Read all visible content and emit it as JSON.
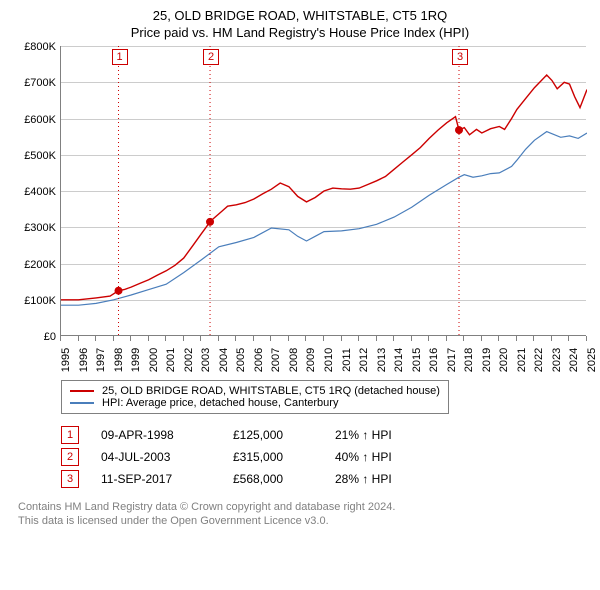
{
  "title_line1": "25, OLD BRIDGE ROAD, WHITSTABLE, CT5 1RQ",
  "title_line2": "Price paid vs. HM Land Registry's House Price Index (HPI)",
  "chart": {
    "x_axis": {
      "start_year": 1995,
      "end_year": 2025,
      "tick_step": 1
    },
    "y_axis": {
      "min": 0,
      "max": 800,
      "tick_step": 100,
      "prefix": "£",
      "suffix": "K"
    },
    "grid_color": "#cccccc",
    "axis_color": "#808080",
    "series": {
      "property": {
        "label": "25, OLD BRIDGE ROAD, WHITSTABLE, CT5 1RQ (detached house)",
        "color": "#cc0000",
        "line_width": 1.4,
        "data": [
          [
            1995.0,
            100
          ],
          [
            1996.0,
            100
          ],
          [
            1997.0,
            105
          ],
          [
            1997.8,
            110
          ],
          [
            1998.28,
            125
          ],
          [
            1998.6,
            128
          ],
          [
            1999.0,
            135
          ],
          [
            1999.5,
            145
          ],
          [
            2000.0,
            155
          ],
          [
            2000.5,
            168
          ],
          [
            2001.0,
            180
          ],
          [
            2001.5,
            195
          ],
          [
            2002.0,
            215
          ],
          [
            2002.5,
            248
          ],
          [
            2003.0,
            282
          ],
          [
            2003.2,
            295
          ],
          [
            2003.5,
            315
          ],
          [
            2003.6,
            320
          ],
          [
            2004.2,
            345
          ],
          [
            2004.5,
            358
          ],
          [
            2005.0,
            362
          ],
          [
            2005.5,
            368
          ],
          [
            2006.0,
            378
          ],
          [
            2006.5,
            392
          ],
          [
            2007.0,
            405
          ],
          [
            2007.5,
            422
          ],
          [
            2008.0,
            412
          ],
          [
            2008.5,
            385
          ],
          [
            2009.0,
            370
          ],
          [
            2009.5,
            382
          ],
          [
            2010.0,
            400
          ],
          [
            2010.5,
            408
          ],
          [
            2011.0,
            406
          ],
          [
            2011.5,
            405
          ],
          [
            2012.0,
            408
          ],
          [
            2012.5,
            418
          ],
          [
            2013.0,
            428
          ],
          [
            2013.5,
            440
          ],
          [
            2014.0,
            460
          ],
          [
            2014.5,
            480
          ],
          [
            2015.0,
            500
          ],
          [
            2015.5,
            520
          ],
          [
            2016.0,
            545
          ],
          [
            2016.5,
            568
          ],
          [
            2017.0,
            588
          ],
          [
            2017.5,
            605
          ],
          [
            2017.7,
            568
          ],
          [
            2018.0,
            575
          ],
          [
            2018.3,
            555
          ],
          [
            2018.7,
            570
          ],
          [
            2019.0,
            560
          ],
          [
            2019.5,
            572
          ],
          [
            2020.0,
            578
          ],
          [
            2020.3,
            570
          ],
          [
            2020.7,
            600
          ],
          [
            2021.0,
            625
          ],
          [
            2021.5,
            655
          ],
          [
            2022.0,
            685
          ],
          [
            2022.3,
            700
          ],
          [
            2022.7,
            720
          ],
          [
            2023.0,
            705
          ],
          [
            2023.3,
            682
          ],
          [
            2023.7,
            700
          ],
          [
            2024.0,
            695
          ],
          [
            2024.3,
            660
          ],
          [
            2024.6,
            630
          ],
          [
            2025.0,
            680
          ]
        ]
      },
      "hpi": {
        "label": "HPI: Average price, detached house, Canterbury",
        "color": "#4a7ebb",
        "line_width": 1.2,
        "data": [
          [
            1995.0,
            85
          ],
          [
            1996.0,
            85
          ],
          [
            1997.0,
            90
          ],
          [
            1998.0,
            100
          ],
          [
            1999.0,
            113
          ],
          [
            2000.0,
            128
          ],
          [
            2001.0,
            143
          ],
          [
            2002.0,
            175
          ],
          [
            2003.0,
            210
          ],
          [
            2004.0,
            246
          ],
          [
            2005.0,
            258
          ],
          [
            2006.0,
            272
          ],
          [
            2007.0,
            298
          ],
          [
            2008.0,
            293
          ],
          [
            2008.5,
            275
          ],
          [
            2009.0,
            262
          ],
          [
            2009.5,
            275
          ],
          [
            2010.0,
            288
          ],
          [
            2011.0,
            290
          ],
          [
            2012.0,
            296
          ],
          [
            2013.0,
            308
          ],
          [
            2014.0,
            328
          ],
          [
            2015.0,
            355
          ],
          [
            2016.0,
            388
          ],
          [
            2017.0,
            418
          ],
          [
            2017.7,
            438
          ],
          [
            2018.0,
            445
          ],
          [
            2018.5,
            438
          ],
          [
            2019.0,
            442
          ],
          [
            2019.5,
            448
          ],
          [
            2020.0,
            450
          ],
          [
            2020.7,
            468
          ],
          [
            2021.0,
            485
          ],
          [
            2021.5,
            515
          ],
          [
            2022.0,
            540
          ],
          [
            2022.7,
            564
          ],
          [
            2023.0,
            558
          ],
          [
            2023.5,
            548
          ],
          [
            2024.0,
            552
          ],
          [
            2024.5,
            545
          ],
          [
            2025.0,
            560
          ]
        ]
      }
    },
    "sale_markers": [
      {
        "label": "1",
        "year": 1998.28,
        "price": 125
      },
      {
        "label": "2",
        "year": 2003.5,
        "price": 315
      },
      {
        "label": "3",
        "year": 2017.7,
        "price": 568
      }
    ],
    "marker_color": "#cc0000",
    "marker_line_pattern": "1,3"
  },
  "legend": {
    "items": [
      {
        "color": "#cc0000",
        "text": "25, OLD BRIDGE ROAD, WHITSTABLE, CT5 1RQ (detached house)"
      },
      {
        "color": "#4a7ebb",
        "text": "HPI: Average price, detached house, Canterbury"
      }
    ]
  },
  "sales_table": [
    {
      "label": "1",
      "date": "09-APR-1998",
      "price": "£125,000",
      "diff": "21% ↑ HPI"
    },
    {
      "label": "2",
      "date": "04-JUL-2003",
      "price": "£315,000",
      "diff": "40% ↑ HPI"
    },
    {
      "label": "3",
      "date": "11-SEP-2017",
      "price": "£568,000",
      "diff": "28% ↑ HPI"
    }
  ],
  "footnote_line1": "Contains HM Land Registry data © Crown copyright and database right 2024.",
  "footnote_line2": "This data is licensed under the Open Government Licence v3.0."
}
